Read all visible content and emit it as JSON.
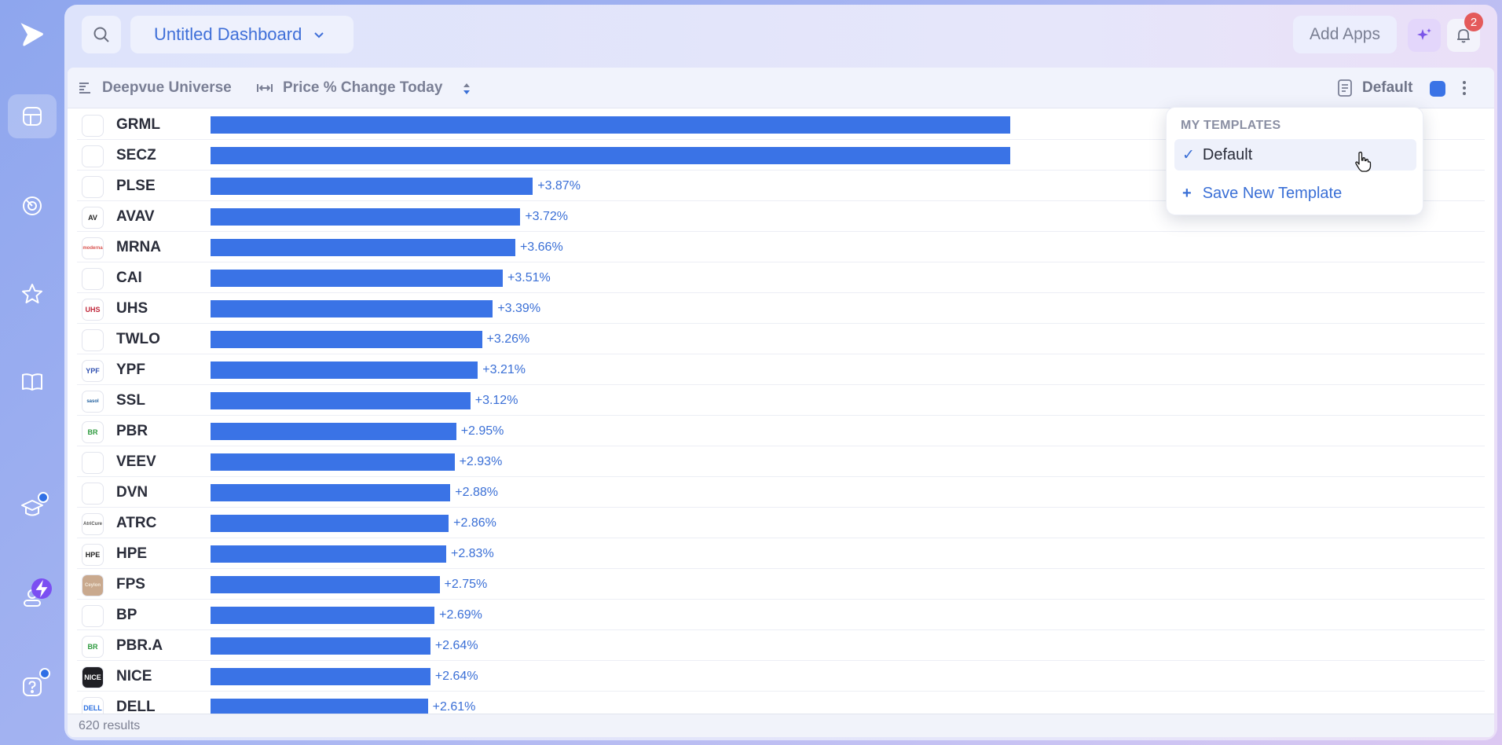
{
  "app": {
    "title": "Untitled Dashboard"
  },
  "sidebar": {
    "items": [
      {
        "name": "dashboards",
        "icon": "dashboard-icon",
        "active": true
      },
      {
        "name": "scanner",
        "icon": "radar-icon"
      },
      {
        "name": "watchlists",
        "icon": "star-icon"
      },
      {
        "name": "journal",
        "icon": "book-icon"
      },
      {
        "name": "learn",
        "icon": "graduation-cap-icon"
      },
      {
        "name": "account",
        "icon": "user-icon"
      },
      {
        "name": "help",
        "icon": "help-icon"
      }
    ]
  },
  "topbar": {
    "add_apps_label": "Add Apps",
    "notification_count": "2"
  },
  "toolbar": {
    "universe_label": "Deepvue Universe",
    "metric_label": "Price % Change Today",
    "template_label": "Default",
    "template_color": "#3a73e6"
  },
  "templates_menu": {
    "header": "MY TEMPLATES",
    "selected_check": "✓",
    "selected_label": "Default",
    "add_icon": "+",
    "save_label": "Save New Template"
  },
  "chart_data": {
    "type": "bar",
    "orientation": "horizontal",
    "categories": [
      "GRML",
      "SECZ",
      "PLSE",
      "AVAV",
      "MRNA",
      "CAI",
      "UHS",
      "TWLO",
      "YPF",
      "SSL",
      "PBR",
      "VEEV",
      "DVN",
      "ATRC",
      "HPE",
      "FPS",
      "BP",
      "PBR.A",
      "NICE",
      "DELL"
    ],
    "value_labels": [
      "",
      "",
      "+3.87%",
      "+3.72%",
      "+3.66%",
      "+3.51%",
      "+3.39%",
      "+3.26%",
      "+3.21%",
      "+3.12%",
      "+2.95%",
      "+2.93%",
      "+2.88%",
      "+2.86%",
      "+2.83%",
      "+2.75%",
      "+2.69%",
      "+2.64%",
      "+2.64%",
      "+2.61%"
    ],
    "values": [
      9.6,
      9.6,
      3.87,
      3.72,
      3.66,
      3.51,
      3.39,
      3.26,
      3.21,
      3.12,
      2.95,
      2.93,
      2.88,
      2.86,
      2.83,
      2.75,
      2.69,
      2.64,
      2.64,
      2.61
    ],
    "bar_color": "#3a73e6"
  },
  "logos": [
    {
      "text": "",
      "color": "#2a6fe0"
    },
    {
      "text": "",
      "color": "#2a6fe0"
    },
    {
      "text": "",
      "color": "#21b8d6"
    },
    {
      "text": "AV",
      "color": "#222"
    },
    {
      "text": "moderna",
      "color": "#d9534f"
    },
    {
      "text": "",
      "color": "#2a6fe0"
    },
    {
      "text": "UHS",
      "color": "#c0283b"
    },
    {
      "text": "",
      "color": "#e23a4a"
    },
    {
      "text": "YPF",
      "color": "#2f4fb0"
    },
    {
      "text": "sasol",
      "color": "#1f5e9e"
    },
    {
      "text": "BR",
      "color": "#2e9a3f"
    },
    {
      "text": "",
      "color": "#f39a1e"
    },
    {
      "text": "",
      "color": "#e2452b"
    },
    {
      "text": "AtriCure",
      "color": "#555"
    },
    {
      "text": "HPE",
      "color": "#222"
    },
    {
      "text": "Ceylon",
      "color": "#f3e9dc"
    },
    {
      "text": "",
      "color": "#6cc04a"
    },
    {
      "text": "BR",
      "color": "#2e9a3f"
    },
    {
      "text": "NICE",
      "color": "#ffffff"
    },
    {
      "text": "DELL",
      "color": "#2a6fe0"
    }
  ],
  "footer": {
    "results_label": "620 results"
  }
}
